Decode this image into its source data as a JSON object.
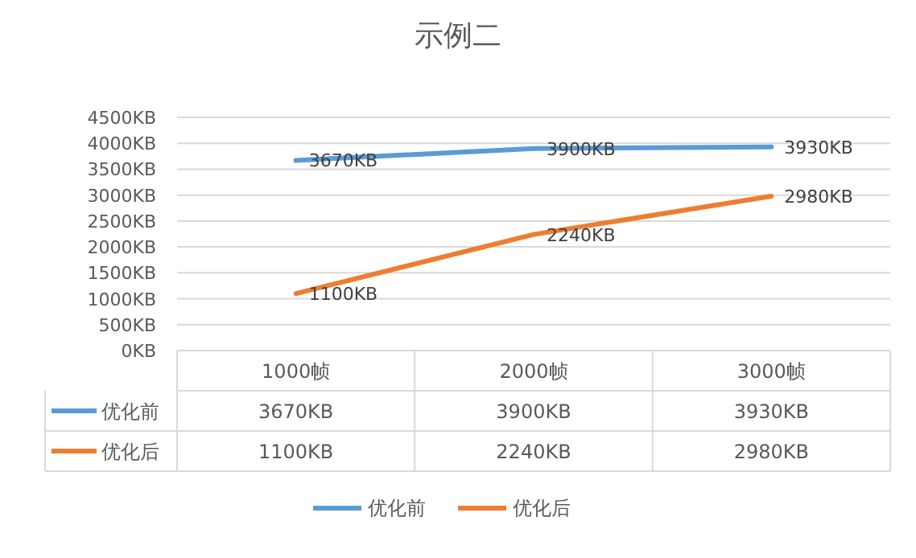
{
  "chart_data": {
    "type": "line",
    "title": "示例二",
    "categories": [
      "1000帧",
      "2000帧",
      "3000帧"
    ],
    "series": [
      {
        "name": "优化前",
        "color": "#5b9bd5",
        "values": [
          3670,
          3900,
          3930
        ],
        "value_labels": [
          "3670KB",
          "3900KB",
          "3930KB"
        ]
      },
      {
        "name": "优化后",
        "color": "#ed7d31",
        "values": [
          1100,
          2240,
          2980
        ],
        "value_labels": [
          "1100KB",
          "2240KB",
          "2980KB"
        ]
      }
    ],
    "ylim": [
      0,
      4500
    ],
    "yticks": [
      {
        "value": 0,
        "label": "0KB"
      },
      {
        "value": 500,
        "label": "500KB"
      },
      {
        "value": 1000,
        "label": "1000KB"
      },
      {
        "value": 1500,
        "label": "1500KB"
      },
      {
        "value": 2000,
        "label": "2000KB"
      },
      {
        "value": 2500,
        "label": "2500KB"
      },
      {
        "value": 3000,
        "label": "3000KB"
      },
      {
        "value": 3500,
        "label": "3500KB"
      },
      {
        "value": 4000,
        "label": "4000KB"
      },
      {
        "value": 4500,
        "label": "4500KB"
      }
    ],
    "grid": "y",
    "legend": "bottom",
    "marker": "none",
    "line_style": "solid"
  }
}
